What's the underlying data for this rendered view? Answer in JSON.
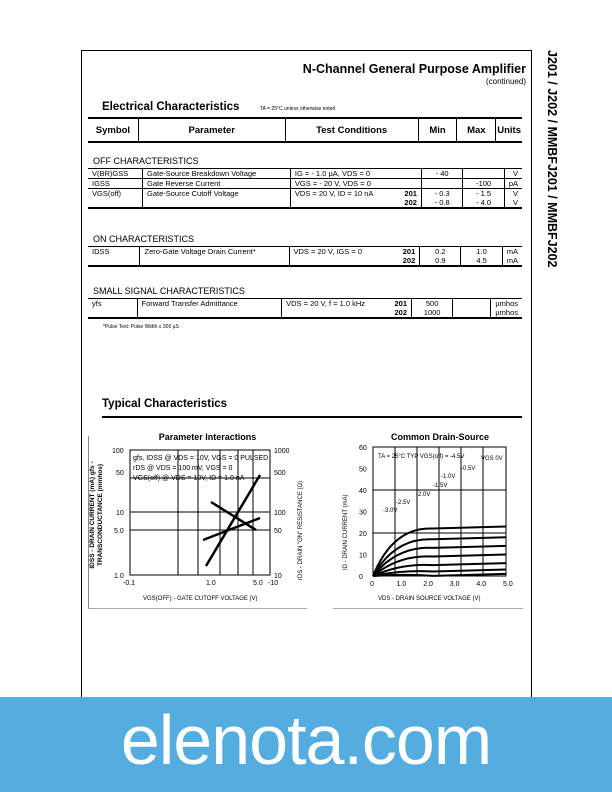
{
  "header": {
    "title": "N-Channel General Purpose Amplifier",
    "subtitle": "(continued)",
    "side_title": "J201 / J202 / MMBFJ201 / MMBFJ202"
  },
  "electrical": {
    "title": "Electrical Characteristics",
    "note": "TA = 25°C unless otherwise noted",
    "columns": [
      "Symbol",
      "Parameter",
      "Test Conditions",
      "Min",
      "Max",
      "Units"
    ],
    "off": {
      "label": "OFF CHARACTERISTICS",
      "rows": [
        {
          "symbol": "V(BR)GSS",
          "parameter": "Gate-Source Breakdown Voltage",
          "conditions": "IG = - 1.0 µA, VDS = 0",
          "variant": "",
          "min": "- 40",
          "max": "",
          "units": "V"
        },
        {
          "symbol": "IGSS",
          "parameter": "Gate Reverse Current",
          "conditions": "VGS = - 20 V, VDS = 0",
          "variant": "",
          "min": "",
          "max": "-100",
          "units": "pA"
        },
        {
          "symbol": "VGS(off)",
          "parameter": "Gate-Source Cutoff Voltage",
          "conditions": "VDS = 20 V, ID = 10 nA",
          "variant": "201\n202",
          "min": "- 0.3\n- 0.8",
          "max": "- 1.5\n- 4.0",
          "units": "V\nV"
        }
      ]
    },
    "on": {
      "label": "ON CHARACTERISTICS",
      "rows": [
        {
          "symbol": "IDSS",
          "parameter": "Zero-Gate Voltage Drain Current*",
          "conditions": "VDS = 20 V, IGS = 0",
          "variant": "201\n202",
          "min": "0.2\n0.9",
          "max": "1.0\n4.5",
          "units": "mA\nmA"
        }
      ]
    },
    "small": {
      "label": "SMALL SIGNAL CHARACTERISTICS",
      "rows": [
        {
          "symbol": "yfs",
          "parameter": "Forward Transfer Admittance",
          "conditions": "VDS = 20 V, f = 1.0 kHz",
          "variant": "201\n202",
          "min": "500\n1000",
          "max": "",
          "units": "µmhos\nµmhos"
        }
      ]
    },
    "footnote": "*Pulse Test: Pulse Width ≤ 300 µS"
  },
  "typical": {
    "title": "Typical Characteristics",
    "chart1": {
      "title": "Parameter Interactions",
      "legend": [
        "gfs, IDSS @ VDS = 10V, VGS = 0 PULSED",
        "rDS @ VDS = 100 mV, VGS = 0",
        "VGS(off) @ VDS = 10V, ID = 1.0 nA"
      ],
      "ylabel_left": "IDSS - DRAIN CURRENT (mA)  gfs - TRANSCONDUCTANCE (mmhos)",
      "ylabel_right": "rDS - DRAIN \"ON\" RESISTANCE (Ω)",
      "xlabel": "VGS(OFF) - GATE CUTOFF VOLTAGE (V)",
      "yticks_left": [
        "100",
        "50",
        "10",
        "5.0",
        "1.0"
      ],
      "yticks_right": [
        "1000",
        "500",
        "100",
        "50",
        "10"
      ],
      "xticks": [
        "-0.1",
        "1.0",
        "5.0",
        "-10"
      ],
      "curves": [
        "IDSS",
        "rDS",
        "gfs"
      ]
    },
    "chart2": {
      "title": "Common Drain-Source",
      "annotation": "TA = 25°C  TYP VGS(off) = -4.5V",
      "curve_labels": [
        "VGS 0V",
        "-0.5V",
        "-1.0V",
        "-1.5V",
        "-2.0V",
        "-2.5V",
        "-3.0V"
      ],
      "ylabel": "ID - DRAIN CURRENT (mA)",
      "xlabel": "VDS - DRAIN SOURCE VOLTAGE (V)",
      "yticks": [
        "60",
        "50",
        "40",
        "30",
        "20",
        "10",
        "0"
      ],
      "xticks": [
        "0",
        "1.0",
        "2.0",
        "3.0",
        "4.0",
        "5.0"
      ]
    }
  },
  "watermark": "elenota.com",
  "colors": {
    "watermark_band": "#54acdf"
  }
}
